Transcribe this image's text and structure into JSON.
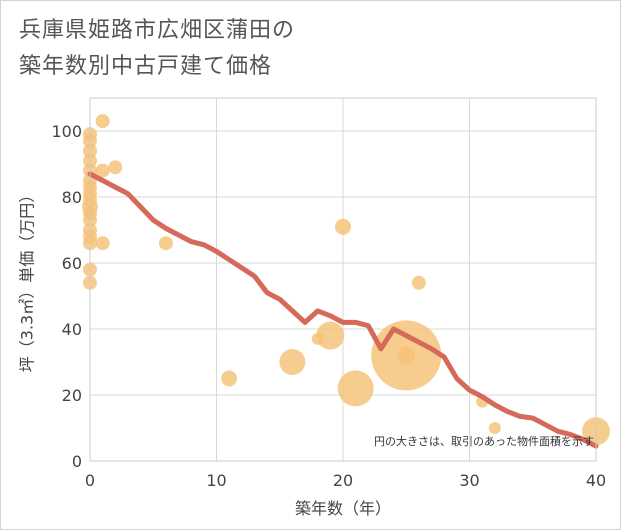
{
  "title": "兵庫県姫路市広畑区蒲田の\n築年数別中古戸建て価格",
  "chart_data": {
    "type": "scatter",
    "title": "兵庫県姫路市広畑区蒲田の築年数別中古戸建て価格",
    "xlabel": "築年数（年）",
    "ylabel": "坪（3.3㎡）単価（万円）",
    "xlim": [
      0,
      40
    ],
    "ylim": [
      0,
      110
    ],
    "xticks": [
      0,
      10,
      20,
      30,
      40
    ],
    "yticks": [
      0,
      20,
      40,
      60,
      80,
      100
    ],
    "grid": true,
    "note": "円の大きさは、取引のあった物件面積を示す",
    "colors": {
      "bubble": "#f5c173",
      "line": "#d5695a"
    },
    "scatter": [
      {
        "x": 0,
        "y": 99,
        "s": 7
      },
      {
        "x": 0,
        "y": 97,
        "s": 7
      },
      {
        "x": 0,
        "y": 94,
        "s": 7
      },
      {
        "x": 0,
        "y": 91,
        "s": 7
      },
      {
        "x": 0,
        "y": 88,
        "s": 7
      },
      {
        "x": 0,
        "y": 85,
        "s": 7
      },
      {
        "x": 0,
        "y": 83,
        "s": 7
      },
      {
        "x": 0,
        "y": 81,
        "s": 7
      },
      {
        "x": 0,
        "y": 79,
        "s": 7
      },
      {
        "x": 0,
        "y": 77,
        "s": 8
      },
      {
        "x": 0,
        "y": 75,
        "s": 7
      },
      {
        "x": 0,
        "y": 73,
        "s": 7
      },
      {
        "x": 0,
        "y": 70,
        "s": 7
      },
      {
        "x": 0,
        "y": 68,
        "s": 7
      },
      {
        "x": 0,
        "y": 66,
        "s": 7
      },
      {
        "x": 0,
        "y": 58,
        "s": 7
      },
      {
        "x": 0,
        "y": 54,
        "s": 7
      },
      {
        "x": 1,
        "y": 103,
        "s": 7
      },
      {
        "x": 1,
        "y": 88,
        "s": 7
      },
      {
        "x": 1,
        "y": 66,
        "s": 7
      },
      {
        "x": 2,
        "y": 89,
        "s": 7
      },
      {
        "x": 6,
        "y": 66,
        "s": 7
      },
      {
        "x": 11,
        "y": 25,
        "s": 8
      },
      {
        "x": 16,
        "y": 30,
        "s": 13
      },
      {
        "x": 18,
        "y": 37,
        "s": 6
      },
      {
        "x": 19,
        "y": 38,
        "s": 14
      },
      {
        "x": 20,
        "y": 71,
        "s": 8
      },
      {
        "x": 21,
        "y": 22,
        "s": 18
      },
      {
        "x": 25,
        "y": 32,
        "s": 35
      },
      {
        "x": 25,
        "y": 32,
        "s": 9
      },
      {
        "x": 26,
        "y": 54,
        "s": 7
      },
      {
        "x": 31,
        "y": 18,
        "s": 6
      },
      {
        "x": 32,
        "y": 10,
        "s": 6
      },
      {
        "x": 40,
        "y": 9,
        "s": 14
      }
    ],
    "line": {
      "x": [
        0,
        1,
        2,
        3,
        4,
        5,
        6,
        7,
        8,
        9,
        10,
        11,
        12,
        13,
        14,
        15,
        16,
        17,
        18,
        19,
        20,
        21,
        22,
        23,
        24,
        25,
        26,
        27,
        28,
        29,
        30,
        31,
        32,
        33,
        34,
        35,
        36,
        37,
        38,
        39,
        40
      ],
      "y": [
        87,
        85,
        83,
        81,
        77,
        73,
        70.5,
        68.5,
        66.5,
        65.5,
        63.5,
        61,
        58.5,
        56,
        51,
        49,
        45.5,
        42,
        45.5,
        44,
        42,
        42,
        41,
        34,
        40,
        38,
        36,
        34,
        31.5,
        25,
        21.5,
        19.5,
        17,
        15,
        13.5,
        13,
        11,
        9,
        8,
        6.5,
        4.5
      ]
    }
  }
}
